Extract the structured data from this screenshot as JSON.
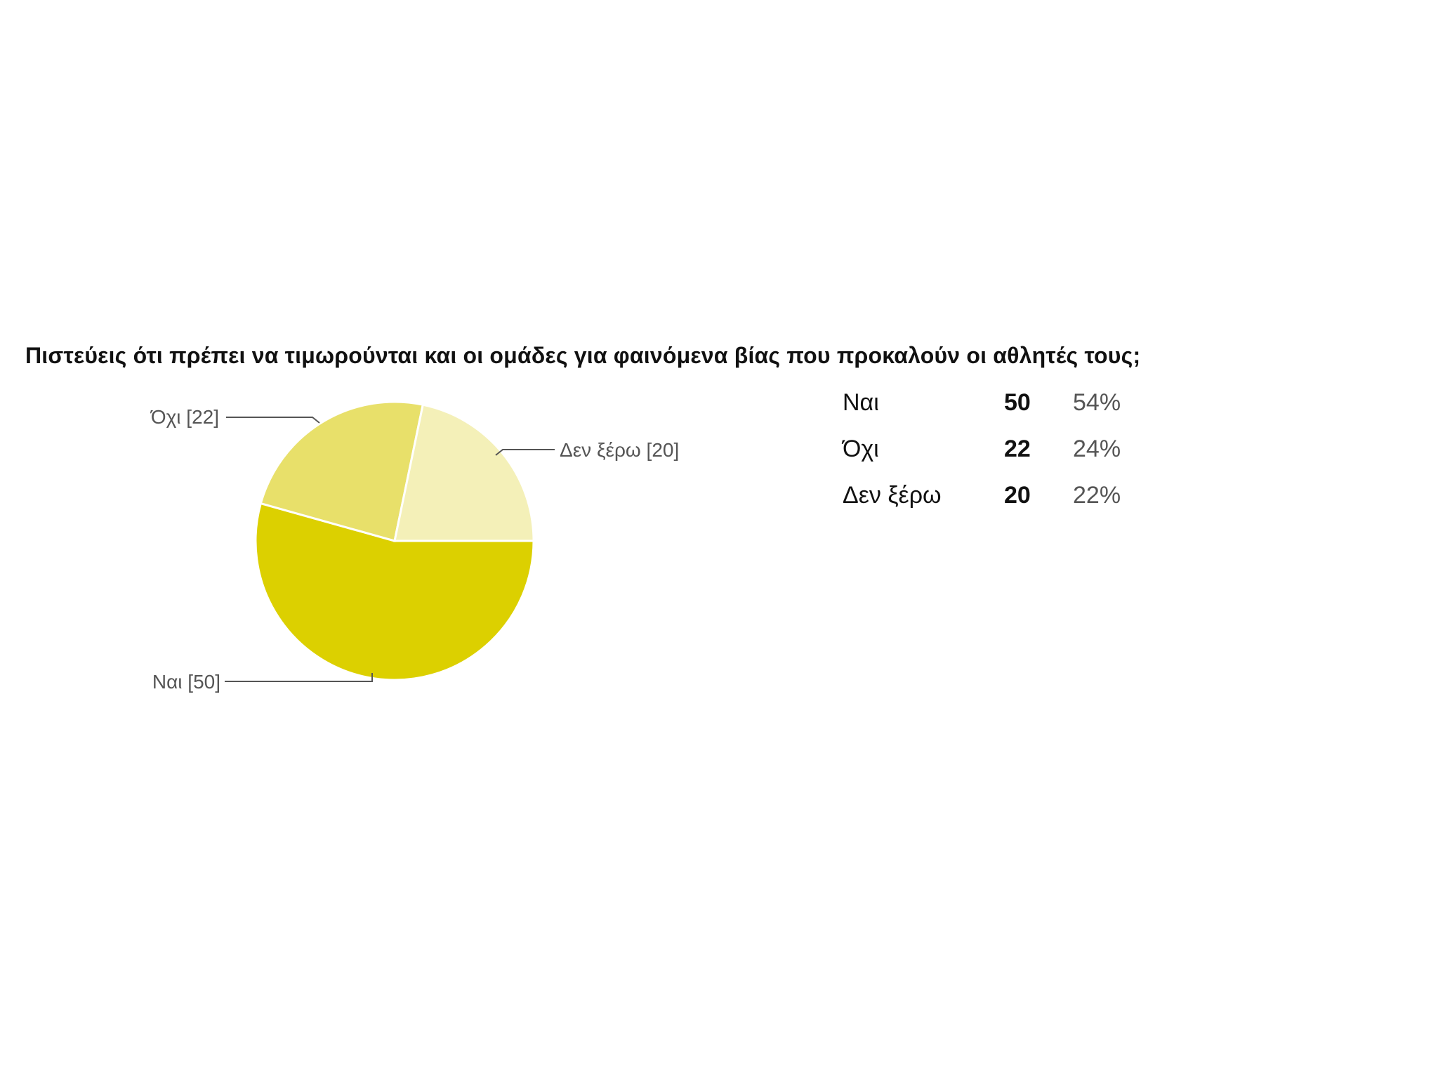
{
  "question": "Πιστεύεις ότι πρέπει να τιμωρούνται και οι ομάδες για φαινόμενα βίας που προκαλούν οι αθλητές τους;",
  "chart_data": {
    "type": "pie",
    "title": "Πιστεύεις ότι πρέπει να τιμωρούνται και οι ομάδες για φαινόμενα βίας που προκαλούν οι αθλητές τους;",
    "slices": [
      {
        "label": "Ναι",
        "value": 50,
        "percent": "54%",
        "callout": "Ναι [50]",
        "color": "#dcd000"
      },
      {
        "label": "Όχι",
        "value": 22,
        "percent": "24%",
        "callout": "Όχι [22]",
        "color": "#e8e06a"
      },
      {
        "label": "Δεν ξέρω",
        "value": 20,
        "percent": "22%",
        "callout": "Δεν ξέρω [20]",
        "color": "#f4f0b8"
      }
    ],
    "legend_placement": "right-table",
    "start": "3 o'clock, clockwise"
  }
}
